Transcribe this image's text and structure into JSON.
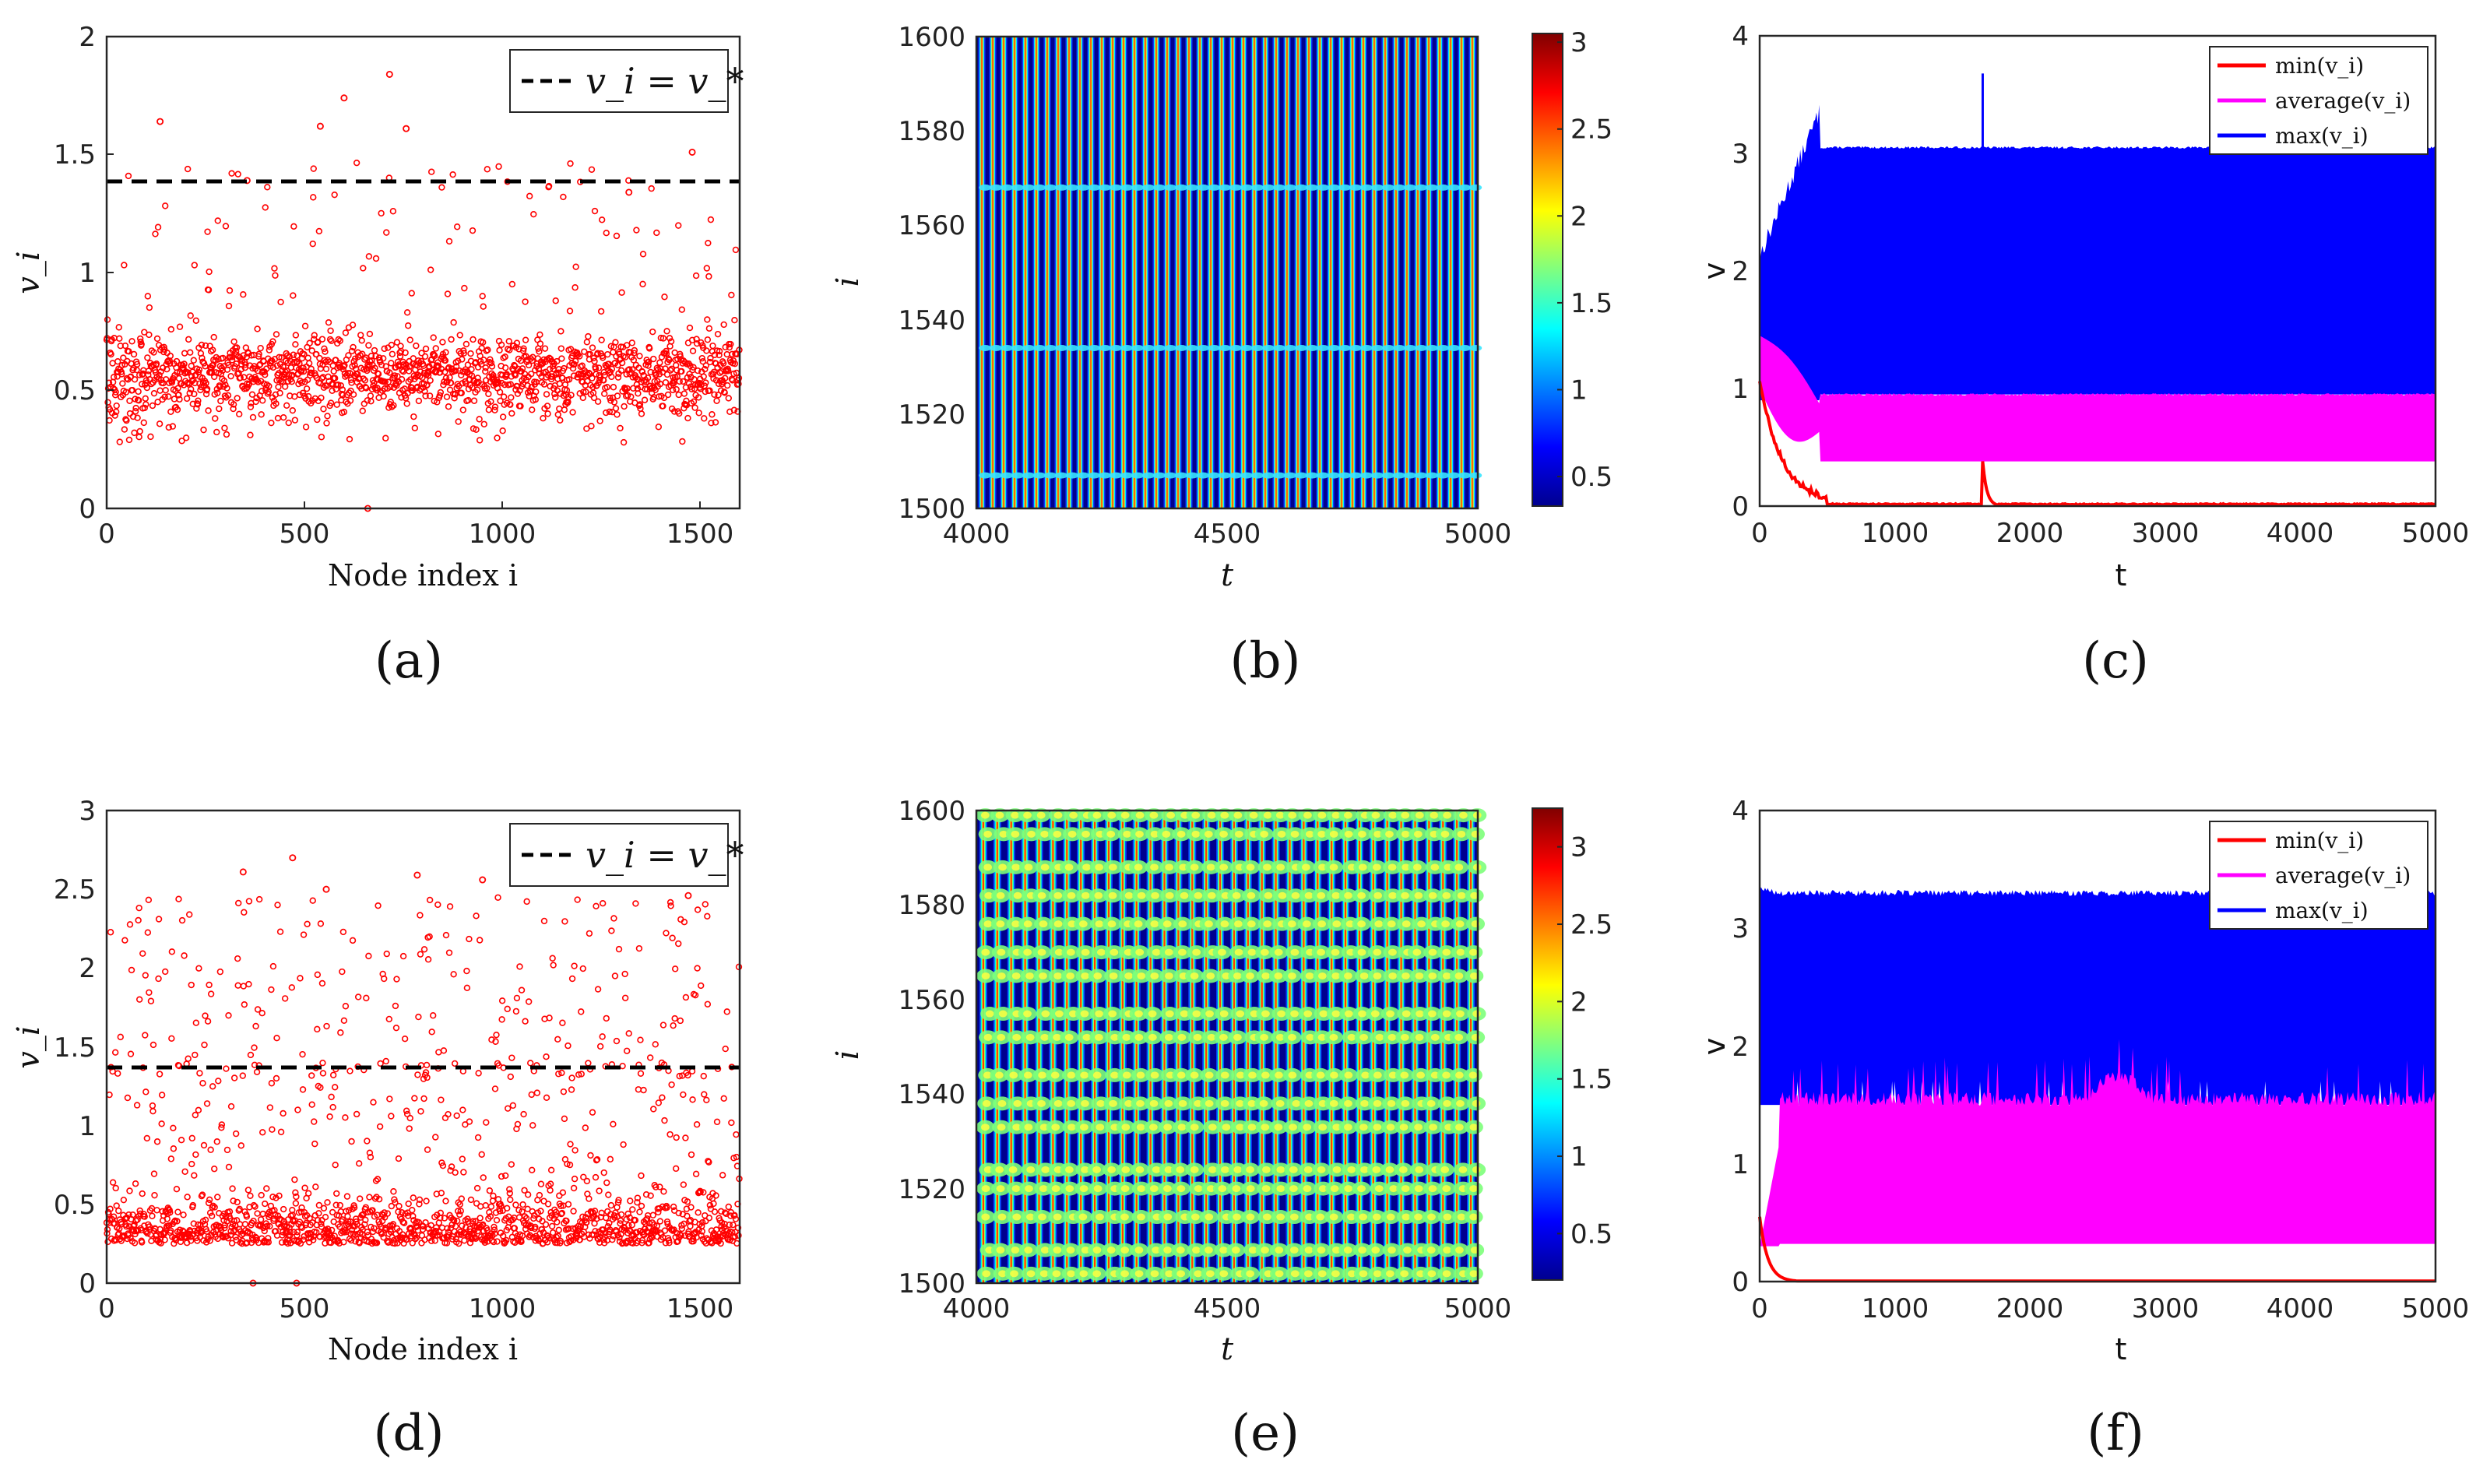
{
  "figure": {
    "panel_labels": [
      "(a)",
      "(b)",
      "(c)",
      "(d)",
      "(e)",
      "(f)"
    ]
  },
  "chart_data": [
    {
      "id": "a",
      "type": "scatter",
      "xlabel": "Node index i",
      "ylabel": "v_i",
      "xlim": [
        0,
        1600
      ],
      "ylim": [
        0,
        2
      ],
      "xticks": [
        "0",
        "500",
        "1000",
        "1500"
      ],
      "yticks": [
        "0",
        "0.5",
        "1",
        "1.5",
        "2"
      ],
      "threshold": 1.38,
      "legend": "v_i = v_*",
      "marker_color": "#ff0000",
      "n_points": 1600,
      "bulk_mean": 0.57,
      "bulk_spread": 0.08,
      "noted_outliers": [
        {
          "x": 135,
          "y": 1.64
        },
        {
          "x": 355,
          "y": 1.39
        },
        {
          "x": 540,
          "y": 1.62
        },
        {
          "x": 600,
          "y": 1.74
        },
        {
          "x": 715,
          "y": 1.84
        },
        {
          "x": 757,
          "y": 1.61
        },
        {
          "x": 1480,
          "y": 1.51
        },
        {
          "x": 660,
          "y": 0.0
        },
        {
          "x": 1320,
          "y": 1.34
        }
      ]
    },
    {
      "id": "b",
      "type": "heatmap",
      "xlabel": "t",
      "ylabel": "i",
      "xlim": [
        4000,
        5000
      ],
      "ylim": [
        1500,
        1600
      ],
      "xticks": [
        "4000",
        "4500",
        "5000"
      ],
      "yticks": [
        "1500",
        "1520",
        "1540",
        "1560",
        "1580",
        "1600"
      ],
      "colorbar_range": [
        0.33,
        3.05
      ],
      "colorbar_ticks": [
        "0.5",
        "1",
        "1.5",
        "2",
        "2.5",
        "3"
      ],
      "stripe_count": 46,
      "defect_rows": [
        1507,
        1534,
        1568
      ]
    },
    {
      "id": "c",
      "type": "line",
      "xlabel": "t",
      "ylabel": "v",
      "xlim": [
        0,
        5000
      ],
      "ylim": [
        0,
        4
      ],
      "xticks": [
        "0",
        "1000",
        "2000",
        "3000",
        "4000",
        "5000"
      ],
      "yticks": [
        "0",
        "1",
        "2",
        "3",
        "4"
      ],
      "series": [
        {
          "name": "min(v_i)",
          "color": "#ff0000",
          "steady": [
            0.0,
            0.02
          ],
          "transient_end": 500,
          "spike_at": 1650,
          "spike_value": 0.38
        },
        {
          "name": "average(v_i)",
          "color": "#ff00ff",
          "steady": [
            0.38,
            0.95
          ],
          "transient_end": 450
        },
        {
          "name": "max(v_i)",
          "color": "#0000ff",
          "steady": [
            0.95,
            3.05
          ],
          "transient_end": 450,
          "spike_at": 1650,
          "spike_value": 3.68
        }
      ]
    },
    {
      "id": "d",
      "type": "scatter",
      "xlabel": "Node index i",
      "ylabel": "v_i",
      "xlim": [
        0,
        1600
      ],
      "ylim": [
        0,
        3
      ],
      "xticks": [
        "0",
        "500",
        "1000",
        "1500"
      ],
      "yticks": [
        "0",
        "0.5",
        "1",
        "1.5",
        "2",
        "2.5",
        "3"
      ],
      "threshold": 1.37,
      "legend": "v_i = v_*",
      "marker_color": "#ff0000",
      "n_points": 1600,
      "bulk_mean": 0.3,
      "bulk_spread": 0.1,
      "noted_outliers": [
        {
          "x": 345,
          "y": 2.61
        },
        {
          "x": 470,
          "y": 2.7
        },
        {
          "x": 555,
          "y": 2.5
        },
        {
          "x": 950,
          "y": 2.56
        },
        {
          "x": 1470,
          "y": 2.46
        },
        {
          "x": 785,
          "y": 2.59
        },
        {
          "x": 370,
          "y": 0.0
        },
        {
          "x": 480,
          "y": 0.0
        }
      ]
    },
    {
      "id": "e",
      "type": "heatmap",
      "xlabel": "t",
      "ylabel": "i",
      "xlim": [
        4000,
        5000
      ],
      "ylim": [
        1500,
        1600
      ],
      "xticks": [
        "4000",
        "4500",
        "5000"
      ],
      "yticks": [
        "1500",
        "1520",
        "1540",
        "1560",
        "1580",
        "1600"
      ],
      "colorbar_range": [
        0.2,
        3.25
      ],
      "colorbar_ticks": [
        "0.5",
        "1",
        "1.5",
        "2",
        "2.5",
        "3"
      ],
      "stripe_count": 36,
      "defect_rows": [
        1502,
        1507,
        1514,
        1520,
        1524,
        1533,
        1538,
        1544,
        1552,
        1557,
        1565,
        1570,
        1576,
        1582,
        1588,
        1595,
        1599
      ]
    },
    {
      "id": "f",
      "type": "line",
      "xlabel": "t",
      "ylabel": "v",
      "xlim": [
        0,
        5000
      ],
      "ylim": [
        0,
        4
      ],
      "xticks": [
        "0",
        "1000",
        "2000",
        "3000",
        "4000",
        "5000"
      ],
      "yticks": [
        "0",
        "1",
        "2",
        "3",
        "4"
      ],
      "series": [
        {
          "name": "min(v_i)",
          "color": "#ff0000",
          "steady": [
            0.0,
            0.0
          ],
          "transient_end": 300
        },
        {
          "name": "average(v_i)",
          "color": "#ff00ff",
          "steady": [
            0.32,
            1.65
          ],
          "transient_end": 150
        },
        {
          "name": "max(v_i)",
          "color": "#0000ff",
          "steady": [
            1.5,
            3.3
          ],
          "transient_end": 100
        }
      ]
    }
  ]
}
